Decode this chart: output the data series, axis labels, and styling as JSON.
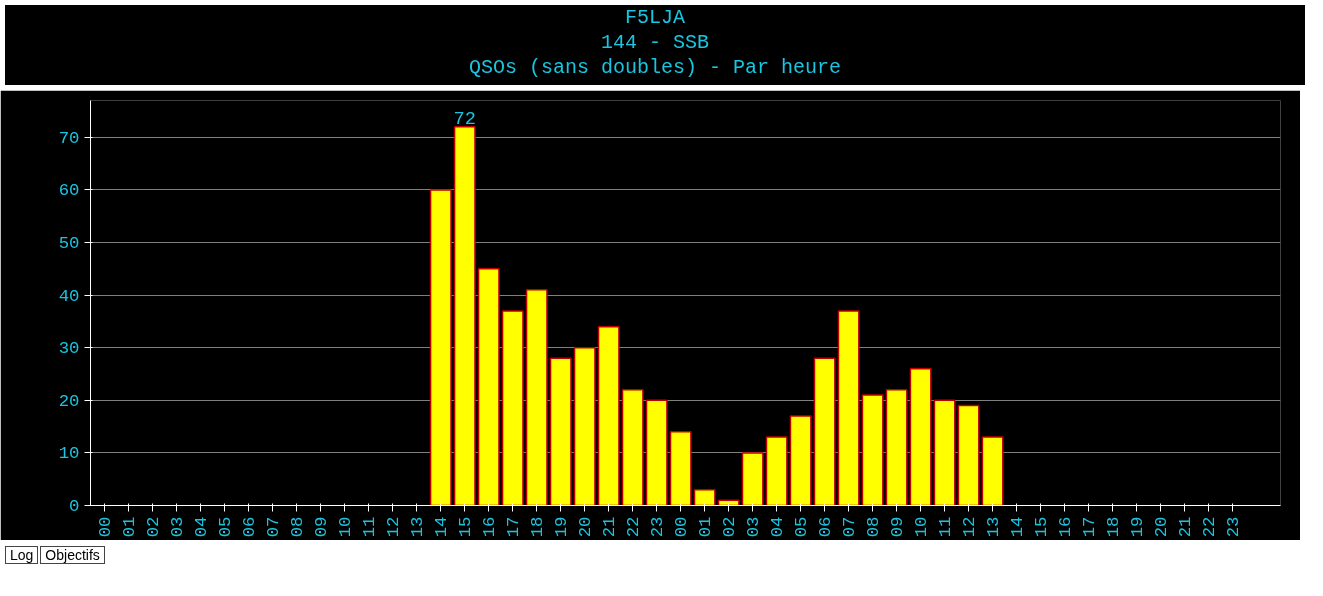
{
  "chart_data": {
    "type": "bar",
    "title": "F5LJA",
    "subtitle": "144 - SSB\nQSOs (sans doubles) - Par heure",
    "categories": [
      "00",
      "01",
      "02",
      "03",
      "04",
      "05",
      "06",
      "07",
      "08",
      "09",
      "10",
      "11",
      "12",
      "13",
      "14",
      "15",
      "16",
      "17",
      "18",
      "19",
      "20",
      "21",
      "22",
      "23",
      "00",
      "01",
      "02",
      "03",
      "04",
      "05",
      "06",
      "07",
      "08",
      "09",
      "10",
      "11",
      "12",
      "13",
      "14",
      "15",
      "16",
      "17",
      "18",
      "19",
      "20",
      "21",
      "22",
      "23"
    ],
    "values": [
      null,
      null,
      null,
      null,
      null,
      null,
      null,
      null,
      null,
      null,
      null,
      null,
      null,
      null,
      60,
      72,
      45,
      37,
      41,
      28,
      30,
      34,
      22,
      20,
      14,
      3,
      1,
      10,
      13,
      17,
      28,
      37,
      21,
      22,
      26,
      20,
      19,
      13,
      null,
      null,
      null,
      null,
      null,
      null,
      null,
      null,
      null,
      null
    ],
    "value_labels": [
      null,
      null,
      null,
      null,
      null,
      null,
      null,
      null,
      null,
      null,
      null,
      null,
      null,
      null,
      null,
      "72",
      null,
      null,
      null,
      null,
      null,
      null,
      null,
      null,
      null,
      null,
      null,
      null,
      null,
      null,
      null,
      null,
      null,
      null,
      null,
      null,
      null,
      null,
      null,
      null,
      null,
      null,
      null,
      null,
      null,
      null,
      null,
      null
    ],
    "color": "#ffff00",
    "ylim": [
      0,
      77
    ],
    "yticks": [
      0,
      10,
      20,
      30,
      40,
      50,
      60,
      70
    ],
    "grid": "y",
    "annotations": [
      "Log",
      "Objectifs"
    ]
  }
}
